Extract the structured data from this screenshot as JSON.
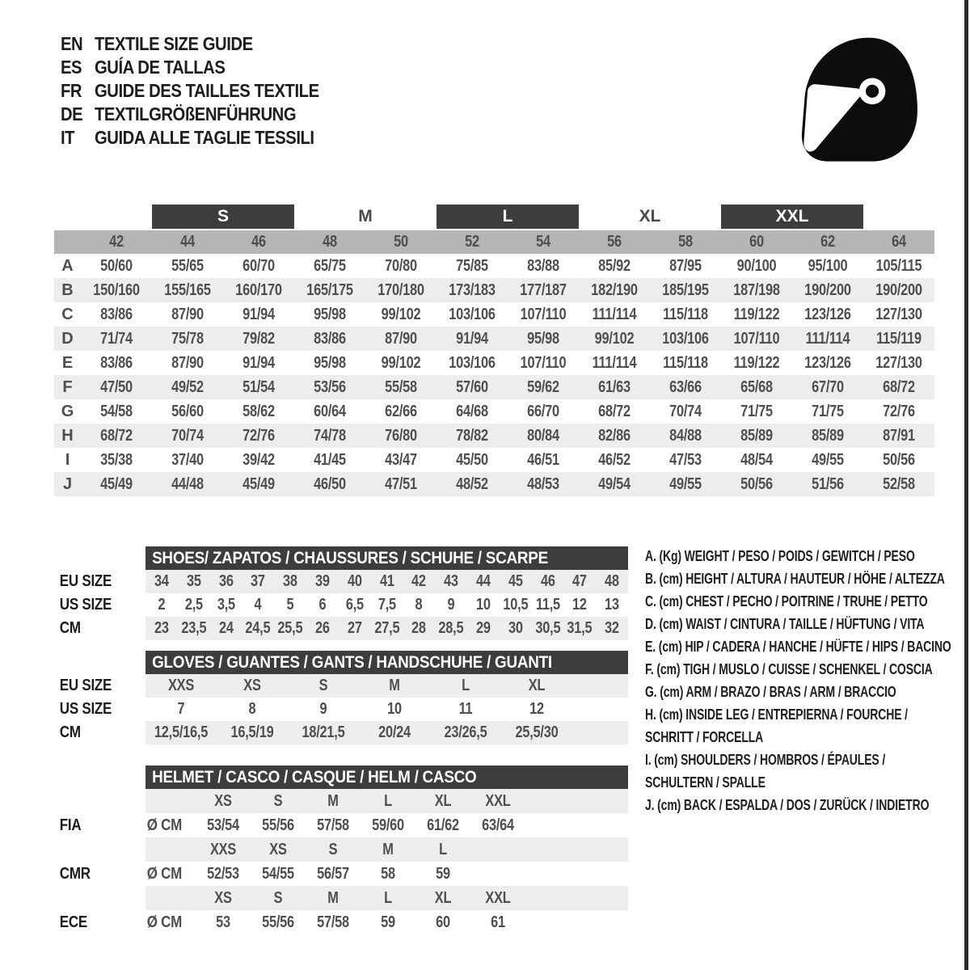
{
  "languages": [
    {
      "code": "EN",
      "title": "TEXTILE SIZE GUIDE"
    },
    {
      "code": "ES",
      "title": "GUÍA DE TALLAS"
    },
    {
      "code": "FR",
      "title": "GUIDE DES TAILLES TEXTILE"
    },
    {
      "code": "DE",
      "title": "TEXTILGRÖßENFÜHRUNG"
    },
    {
      "code": "IT",
      "title": "GUIDA ALLE TAGLIE TESSILI"
    }
  ],
  "helmet_icon": "racing-helmet-icon",
  "main_size_table": {
    "size_groups": [
      {
        "label": "S",
        "boxed": true
      },
      {
        "label": "M",
        "boxed": false
      },
      {
        "label": "L",
        "boxed": true
      },
      {
        "label": "XL",
        "boxed": false
      },
      {
        "label": "XXL",
        "boxed": true
      }
    ],
    "numeric_sizes": [
      "42",
      "44",
      "46",
      "48",
      "50",
      "52",
      "54",
      "56",
      "58",
      "60",
      "62",
      "64"
    ],
    "rows": [
      {
        "letter": "A",
        "values": [
          "50/60",
          "55/65",
          "60/70",
          "65/75",
          "70/80",
          "75/85",
          "83/88",
          "85/92",
          "87/95",
          "90/100",
          "95/100",
          "105/115"
        ]
      },
      {
        "letter": "B",
        "values": [
          "150/160",
          "155/165",
          "160/170",
          "165/175",
          "170/180",
          "173/183",
          "177/187",
          "182/190",
          "185/195",
          "187/198",
          "190/200",
          "190/200"
        ]
      },
      {
        "letter": "C",
        "values": [
          "83/86",
          "87/90",
          "91/94",
          "95/98",
          "99/102",
          "103/106",
          "107/110",
          "111/114",
          "115/118",
          "119/122",
          "123/126",
          "127/130"
        ]
      },
      {
        "letter": "D",
        "values": [
          "71/74",
          "75/78",
          "79/82",
          "83/86",
          "87/90",
          "91/94",
          "95/98",
          "99/102",
          "103/106",
          "107/110",
          "111/114",
          "115/119"
        ]
      },
      {
        "letter": "E",
        "values": [
          "83/86",
          "87/90",
          "91/94",
          "95/98",
          "99/102",
          "103/106",
          "107/110",
          "111/114",
          "115/118",
          "119/122",
          "123/126",
          "127/130"
        ]
      },
      {
        "letter": "F",
        "values": [
          "47/50",
          "49/52",
          "51/54",
          "53/56",
          "55/58",
          "57/60",
          "59/62",
          "61/63",
          "63/66",
          "65/68",
          "67/70",
          "68/72"
        ]
      },
      {
        "letter": "G",
        "values": [
          "54/58",
          "56/60",
          "58/62",
          "60/64",
          "62/66",
          "64/68",
          "66/70",
          "68/72",
          "70/74",
          "71/75",
          "71/75",
          "72/76"
        ]
      },
      {
        "letter": "H",
        "values": [
          "68/72",
          "70/74",
          "72/76",
          "74/78",
          "76/80",
          "78/82",
          "80/84",
          "82/86",
          "84/88",
          "85/89",
          "85/89",
          "87/91"
        ]
      },
      {
        "letter": "I",
        "values": [
          "35/38",
          "37/40",
          "39/42",
          "41/45",
          "43/47",
          "45/50",
          "46/51",
          "46/52",
          "47/53",
          "48/54",
          "49/55",
          "50/56"
        ]
      },
      {
        "letter": "J",
        "values": [
          "45/49",
          "44/48",
          "45/49",
          "46/50",
          "47/51",
          "48/52",
          "48/53",
          "49/54",
          "49/55",
          "50/56",
          "51/56",
          "52/58"
        ]
      }
    ]
  },
  "shoes_table": {
    "title": "SHOES/ ZAPATOS / CHAUSSURES / SCHUHE / SCARPE",
    "rows": [
      {
        "label": "EU SIZE",
        "values": [
          "34",
          "35",
          "36",
          "37",
          "38",
          "39",
          "40",
          "41",
          "42",
          "43",
          "44",
          "45",
          "46",
          "47",
          "48"
        ]
      },
      {
        "label": "US SIZE",
        "values": [
          "2",
          "2,5",
          "3,5",
          "4",
          "5",
          "6",
          "6,5",
          "7,5",
          "8",
          "9",
          "10",
          "10,5",
          "11,5",
          "12",
          "13"
        ]
      },
      {
        "label": "CM",
        "values": [
          "23",
          "23,5",
          "24",
          "24,5",
          "25,5",
          "26",
          "27",
          "27,5",
          "28",
          "28,5",
          "29",
          "30",
          "30,5",
          "31,5",
          "32"
        ]
      }
    ]
  },
  "gloves_table": {
    "title": "GLOVES / GUANTES / GANTS / HANDSCHUHE / GUANTI",
    "rows": [
      {
        "label": "EU SIZE",
        "values": [
          "XXS",
          "XS",
          "S",
          "M",
          "L",
          "XL"
        ]
      },
      {
        "label": "US SIZE",
        "values": [
          "7",
          "8",
          "9",
          "10",
          "11",
          "12"
        ]
      },
      {
        "label": "CM",
        "values": [
          "12,5/16,5",
          "16,5/19",
          "18/21,5",
          "20/24",
          "23/26,5",
          "25,5/30"
        ]
      }
    ]
  },
  "helmet_table": {
    "title": "HELMET / CASCO / CASQUE / HELM / CASCO",
    "sections": [
      {
        "standard": "FIA",
        "unit": "Ø CM",
        "sizes": [
          "XS",
          "S",
          "M",
          "L",
          "XL",
          "XXL"
        ],
        "values": [
          "53/54",
          "55/56",
          "57/58",
          "59/60",
          "61/62",
          "63/64"
        ]
      },
      {
        "standard": "CMR",
        "unit": "Ø CM",
        "sizes": [
          "XXS",
          "XS",
          "S",
          "M",
          "L",
          ""
        ],
        "values": [
          "52/53",
          "54/55",
          "56/57",
          "58",
          "59",
          ""
        ]
      },
      {
        "standard": "ECE",
        "unit": "Ø CM",
        "sizes": [
          "XS",
          "S",
          "M",
          "L",
          "XL",
          "XXL"
        ],
        "values": [
          "53",
          "55/56",
          "57/58",
          "59",
          "60",
          "61"
        ]
      }
    ]
  },
  "legend": {
    "items": [
      {
        "text": "A. (Kg) WEIGHT / PESO / POIDS / GEWITCH / PESO"
      },
      {
        "text": "B. (cm) HEIGHT / ALTURA / HAUTEUR / HÖHE / ALTEZZA"
      },
      {
        "text": "C. (cm) CHEST / PECHO / POITRINE / TRUHE / PETTO"
      },
      {
        "text": "D. (cm) WAIST / CINTURA / TAILLE / HÜFTUNG / VITA"
      },
      {
        "text": "E. (cm) HIP / CADERA / HANCHE / HÜFTE / HIPS /  BACINO"
      },
      {
        "text": "F. (cm) TIGH / MUSLO / CUISSE / SCHENKEL / COSCIA"
      },
      {
        "text": "G. (cm) ARM  / BRAZO / BRAS / ARM / BRACCIO"
      },
      {
        "text": "H. (cm) INSIDE LEG / ENTREPIERNA / FOURCHE /\nSCHRITT / FORCELLA"
      },
      {
        "text": "I.  (cm) SHOULDERS / HOMBROS / ÉPAULES /\nSCHULTERN / SPALLE"
      },
      {
        "text": "J. (cm) BACK / ESPALDA / DOS / ZURÜCK / INDIETRO"
      }
    ]
  },
  "colors": {
    "dark_bar": "#3d3d3d",
    "gray_strip": "#b5b5b5",
    "row_stripe": "#ededed",
    "text_gray": "#4f4f4f",
    "text_black": "#1d1d1d",
    "helmet_black": "#0d0d0d"
  }
}
